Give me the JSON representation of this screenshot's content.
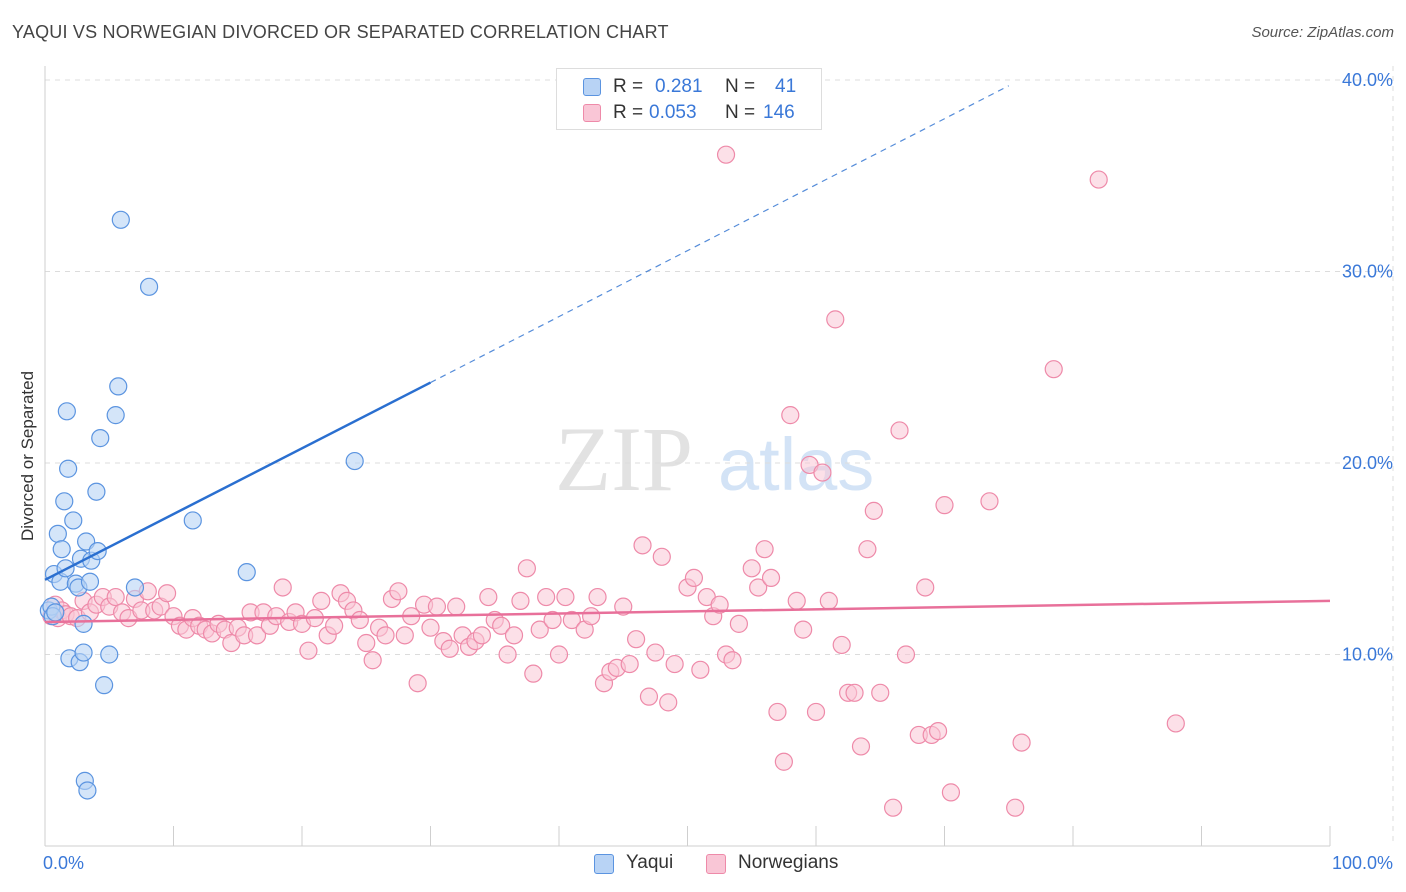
{
  "title": "YAQUI VS NORWEGIAN DIVORCED OR SEPARATED CORRELATION CHART",
  "source": "Source: ZipAtlas.com",
  "watermark": {
    "zip": "ZIP",
    "atlas": "atlas"
  },
  "legend": {
    "rows": [
      {
        "r_label": "R =",
        "r_value": "0.281",
        "n_label": "N =",
        "n_value": "41"
      },
      {
        "r_label": "R =",
        "r_value": "0.053",
        "n_label": "N =",
        "n_value": "146"
      }
    ]
  },
  "colors": {
    "yaqui_fill": "#b8d3f5",
    "yaqui_stroke": "#5b94e0",
    "yaqui_line": "#2a6fd0",
    "norw_fill": "#f9c6d6",
    "norw_stroke": "#ee8aa9",
    "norw_line": "#e8709a",
    "axis_text": "#3a78d8",
    "grid": "#dcdcdc"
  },
  "chart_data": {
    "type": "scatter",
    "title": "YAQUI VS NORWEGIAN DIVORCED OR SEPARATED CORRELATION CHART",
    "xlabel": "",
    "ylabel": "Divorced or Separated",
    "xlim": [
      0,
      100
    ],
    "ylim": [
      0,
      40
    ],
    "x_tick_labels": [
      "0.0%",
      "100.0%"
    ],
    "y_ticks": [
      10,
      20,
      30,
      40
    ],
    "y_tick_labels": [
      "10.0%",
      "20.0%",
      "30.0%",
      "40.0%"
    ],
    "grid": true,
    "legend_position": "bottom",
    "series": [
      {
        "name": "Yaqui",
        "trend": {
          "x": [
            0,
            30
          ],
          "y": [
            13.9,
            24.2
          ],
          "dashed_to": [
            75,
            39.7
          ]
        },
        "points": [
          [
            0.3,
            12.3
          ],
          [
            0.5,
            12.5
          ],
          [
            0.6,
            12.0
          ],
          [
            0.7,
            14.2
          ],
          [
            0.8,
            12.2
          ],
          [
            1.0,
            16.3
          ],
          [
            1.2,
            13.8
          ],
          [
            1.3,
            15.5
          ],
          [
            1.5,
            18.0
          ],
          [
            1.6,
            14.5
          ],
          [
            1.7,
            22.7
          ],
          [
            1.8,
            19.7
          ],
          [
            1.9,
            9.8
          ],
          [
            2.2,
            17.0
          ],
          [
            2.4,
            13.7
          ],
          [
            2.6,
            13.5
          ],
          [
            2.7,
            9.6
          ],
          [
            2.8,
            15.0
          ],
          [
            3.0,
            11.6
          ],
          [
            3.0,
            10.1
          ],
          [
            3.1,
            3.4
          ],
          [
            3.2,
            15.9
          ],
          [
            3.3,
            2.9
          ],
          [
            3.5,
            13.8
          ],
          [
            3.6,
            14.9
          ],
          [
            4.0,
            18.5
          ],
          [
            4.1,
            15.4
          ],
          [
            4.3,
            21.3
          ],
          [
            4.6,
            8.4
          ],
          [
            5.0,
            10.0
          ],
          [
            5.5,
            22.5
          ],
          [
            5.7,
            24.0
          ],
          [
            5.9,
            32.7
          ],
          [
            7.0,
            13.5
          ],
          [
            8.1,
            29.2
          ],
          [
            11.5,
            17.0
          ],
          [
            15.7,
            14.3
          ],
          [
            24.1,
            20.1
          ]
        ]
      },
      {
        "name": "Norwegians",
        "trend": {
          "x": [
            0,
            100
          ],
          "y": [
            11.7,
            12.8
          ]
        },
        "points": [
          [
            0.5,
            12.0
          ],
          [
            0.8,
            12.6
          ],
          [
            1.0,
            11.9
          ],
          [
            1.3,
            12.3
          ],
          [
            1.6,
            12.1
          ],
          [
            2.0,
            12.0
          ],
          [
            2.5,
            11.9
          ],
          [
            3.0,
            12.8
          ],
          [
            3.5,
            12.2
          ],
          [
            4.0,
            12.6
          ],
          [
            4.5,
            13.0
          ],
          [
            5.0,
            12.5
          ],
          [
            5.5,
            13.0
          ],
          [
            6.0,
            12.2
          ],
          [
            6.5,
            11.9
          ],
          [
            7.0,
            12.9
          ],
          [
            7.5,
            12.3
          ],
          [
            8.0,
            13.3
          ],
          [
            8.5,
            12.3
          ],
          [
            9.0,
            12.5
          ],
          [
            9.5,
            13.2
          ],
          [
            10.0,
            12.0
          ],
          [
            10.5,
            11.5
          ],
          [
            11.0,
            11.3
          ],
          [
            11.5,
            11.9
          ],
          [
            12.0,
            11.5
          ],
          [
            12.5,
            11.3
          ],
          [
            13.0,
            11.1
          ],
          [
            13.5,
            11.6
          ],
          [
            14.0,
            11.3
          ],
          [
            14.5,
            10.6
          ],
          [
            15.0,
            11.4
          ],
          [
            15.5,
            11.0
          ],
          [
            16.0,
            12.2
          ],
          [
            16.5,
            11.0
          ],
          [
            17.0,
            12.2
          ],
          [
            17.5,
            11.5
          ],
          [
            18.0,
            12.0
          ],
          [
            18.5,
            13.5
          ],
          [
            19.0,
            11.7
          ],
          [
            19.5,
            12.2
          ],
          [
            20.0,
            11.6
          ],
          [
            20.5,
            10.2
          ],
          [
            21.0,
            11.9
          ],
          [
            21.5,
            12.8
          ],
          [
            22.0,
            11.0
          ],
          [
            22.5,
            11.5
          ],
          [
            23.0,
            13.2
          ],
          [
            23.5,
            12.8
          ],
          [
            24.0,
            12.3
          ],
          [
            24.5,
            11.8
          ],
          [
            25.0,
            10.6
          ],
          [
            25.5,
            9.7
          ],
          [
            26.0,
            11.4
          ],
          [
            26.5,
            11.0
          ],
          [
            27.0,
            12.9
          ],
          [
            27.5,
            13.3
          ],
          [
            28.0,
            11.0
          ],
          [
            28.5,
            12.0
          ],
          [
            29.0,
            8.5
          ],
          [
            29.5,
            12.6
          ],
          [
            30.0,
            11.4
          ],
          [
            30.5,
            12.5
          ],
          [
            31.0,
            10.7
          ],
          [
            31.5,
            10.3
          ],
          [
            32.0,
            12.5
          ],
          [
            32.5,
            11.0
          ],
          [
            33.0,
            10.4
          ],
          [
            33.5,
            10.7
          ],
          [
            34.0,
            11.0
          ],
          [
            34.5,
            13.0
          ],
          [
            35.0,
            11.8
          ],
          [
            35.5,
            11.5
          ],
          [
            36.0,
            10.0
          ],
          [
            36.5,
            11.0
          ],
          [
            37.0,
            12.8
          ],
          [
            37.5,
            14.5
          ],
          [
            38.0,
            9.0
          ],
          [
            38.5,
            11.3
          ],
          [
            39.0,
            13.0
          ],
          [
            39.5,
            11.8
          ],
          [
            40.0,
            10.0
          ],
          [
            40.5,
            13.0
          ],
          [
            41.0,
            11.8
          ],
          [
            42.0,
            11.3
          ],
          [
            42.5,
            12.0
          ],
          [
            43.0,
            13.0
          ],
          [
            43.5,
            8.5
          ],
          [
            44.0,
            9.1
          ],
          [
            44.5,
            9.3
          ],
          [
            45.0,
            12.5
          ],
          [
            45.5,
            9.5
          ],
          [
            46.0,
            10.8
          ],
          [
            46.5,
            15.7
          ],
          [
            47.0,
            7.8
          ],
          [
            47.5,
            10.1
          ],
          [
            48.0,
            15.1
          ],
          [
            48.5,
            7.5
          ],
          [
            49.0,
            9.5
          ],
          [
            50.0,
            13.5
          ],
          [
            50.5,
            14.0
          ],
          [
            51.0,
            9.2
          ],
          [
            51.5,
            13.0
          ],
          [
            52.0,
            12.0
          ],
          [
            52.5,
            12.6
          ],
          [
            53.0,
            10.0
          ],
          [
            53.5,
            9.7
          ],
          [
            54.0,
            11.6
          ],
          [
            55.0,
            14.5
          ],
          [
            55.5,
            13.5
          ],
          [
            56.0,
            15.5
          ],
          [
            56.5,
            14.0
          ],
          [
            57.0,
            7.0
          ],
          [
            57.5,
            4.4
          ],
          [
            58.0,
            22.5
          ],
          [
            58.5,
            12.8
          ],
          [
            59.0,
            11.3
          ],
          [
            59.5,
            19.9
          ],
          [
            60.0,
            7.0
          ],
          [
            60.5,
            19.5
          ],
          [
            61.0,
            12.8
          ],
          [
            61.5,
            27.5
          ],
          [
            62.0,
            10.5
          ],
          [
            62.5,
            8.0
          ],
          [
            63.0,
            8.0
          ],
          [
            63.5,
            5.2
          ],
          [
            64.0,
            15.5
          ],
          [
            64.5,
            17.5
          ],
          [
            65.0,
            8.0
          ],
          [
            66.0,
            2.0
          ],
          [
            66.5,
            21.7
          ],
          [
            67.0,
            10.0
          ],
          [
            68.0,
            5.8
          ],
          [
            68.5,
            13.5
          ],
          [
            69.0,
            5.8
          ],
          [
            69.5,
            6.0
          ],
          [
            70.0,
            17.8
          ],
          [
            70.5,
            2.8
          ],
          [
            73.5,
            18.0
          ],
          [
            75.5,
            2.0
          ],
          [
            76.0,
            5.4
          ],
          [
            78.5,
            24.9
          ],
          [
            82.0,
            34.8
          ],
          [
            88.0,
            6.4
          ],
          [
            53.0,
            36.1
          ]
        ]
      }
    ]
  },
  "bottom_legend": {
    "yaqui": "Yaqui",
    "norwegians": "Norwegians"
  },
  "ylabel": "Divorced or Separated"
}
